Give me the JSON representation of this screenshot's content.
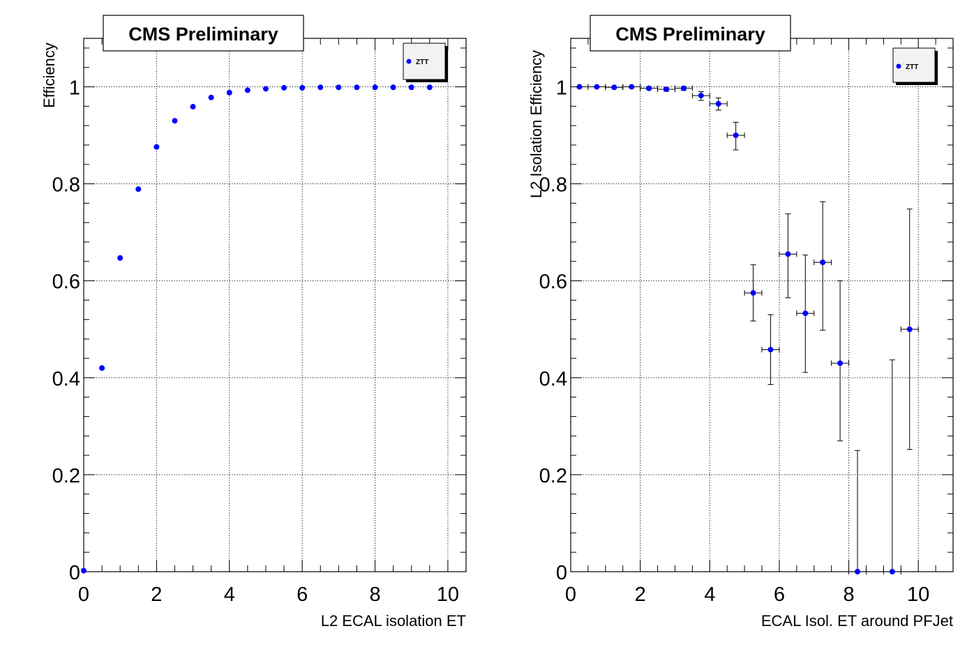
{
  "chart_data": [
    {
      "type": "scatter",
      "title": "CMS Preliminary",
      "xlabel": "L2 ECAL isolation ET",
      "ylabel": "Efficiency",
      "xlim": [
        0,
        10.5
      ],
      "ylim": [
        0,
        1.1
      ],
      "xticks": [
        0,
        2,
        4,
        6,
        8,
        10
      ],
      "yticks": [
        0,
        0.2,
        0.4,
        0.6,
        0.8,
        1
      ],
      "grid": true,
      "legend_position": "top-right",
      "series": [
        {
          "name": "ZTT",
          "color": "#0000ff",
          "x": [
            0,
            0.5,
            1,
            1.5,
            2,
            2.5,
            3,
            3.5,
            4,
            4.5,
            5,
            5.5,
            6,
            6.5,
            7,
            7.5,
            8,
            8.5,
            9,
            9.5
          ],
          "y": [
            0.002,
            0.42,
            0.647,
            0.789,
            0.876,
            0.93,
            0.959,
            0.978,
            0.988,
            0.993,
            0.996,
            0.998,
            0.998,
            0.999,
            0.999,
            0.999,
            0.999,
            0.999,
            0.999,
            0.999
          ]
        }
      ]
    },
    {
      "type": "scatter",
      "title": "CMS Preliminary",
      "xlabel": "ECAL Isol. ET around PFJet",
      "ylabel": "L2 Isolation Efficiency",
      "xlim": [
        0,
        11
      ],
      "ylim": [
        0,
        1.1
      ],
      "xticks": [
        0,
        2,
        4,
        6,
        8,
        10
      ],
      "yticks": [
        0,
        0.2,
        0.4,
        0.6,
        0.8,
        1
      ],
      "grid": true,
      "legend_position": "top-right",
      "series": [
        {
          "name": "ZTT",
          "color": "#0000ff",
          "x": [
            0.25,
            0.75,
            1.25,
            1.75,
            2.25,
            2.75,
            3.25,
            3.75,
            4.25,
            4.75,
            5.25,
            5.75,
            6.25,
            6.75,
            7.25,
            7.75,
            8.25,
            9.25,
            9.75
          ],
          "y": [
            1.0,
            1.0,
            0.999,
            1.0,
            0.997,
            0.995,
            0.997,
            0.982,
            0.965,
            0.9,
            0.575,
            0.458,
            0.655,
            0.533,
            0.638,
            0.43,
            0.0,
            0.0,
            0.5
          ],
          "yerr_low": [
            0.002,
            0.002,
            0.002,
            0.002,
            0.003,
            0.004,
            0.004,
            0.01,
            0.013,
            0.03,
            0.058,
            0.072,
            0.09,
            0.122,
            0.14,
            0.16,
            0.0,
            0.0,
            0.248
          ],
          "yerr_high": [
            0.001,
            0.001,
            0.001,
            0.001,
            0.002,
            0.003,
            0.003,
            0.008,
            0.012,
            0.027,
            0.058,
            0.072,
            0.083,
            0.12,
            0.125,
            0.17,
            0.25,
            0.437,
            0.248
          ],
          "xerr": 0.25
        }
      ]
    }
  ]
}
